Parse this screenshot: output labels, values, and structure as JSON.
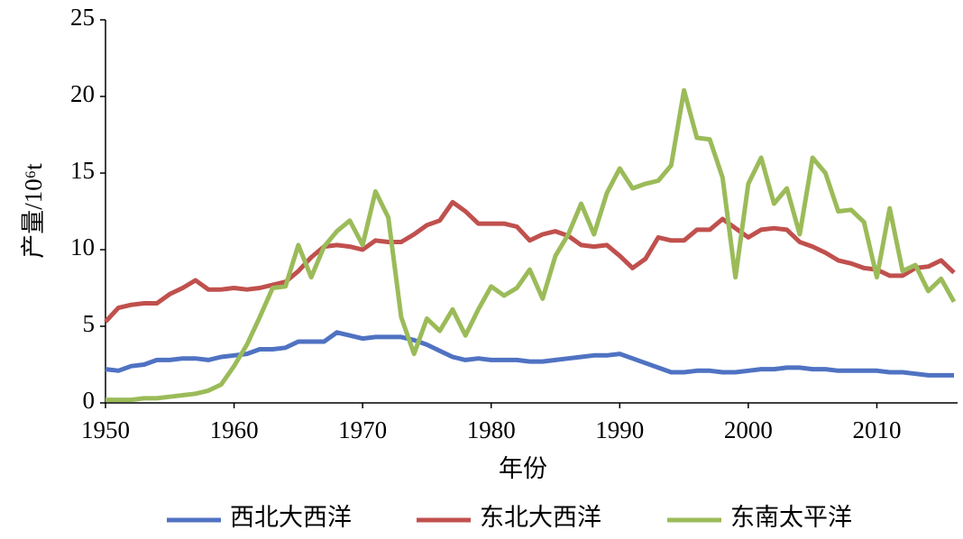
{
  "chart_data": {
    "type": "line",
    "xlabel": "年份",
    "ylabel": "产量/10⁶t",
    "x": [
      1950,
      1951,
      1952,
      1953,
      1954,
      1955,
      1956,
      1957,
      1958,
      1959,
      1960,
      1961,
      1962,
      1963,
      1964,
      1965,
      1966,
      1967,
      1968,
      1969,
      1970,
      1971,
      1972,
      1973,
      1974,
      1975,
      1976,
      1977,
      1978,
      1979,
      1980,
      1981,
      1982,
      1983,
      1984,
      1985,
      1986,
      1987,
      1988,
      1989,
      1990,
      1991,
      1992,
      1993,
      1994,
      1995,
      1996,
      1997,
      1998,
      1999,
      2000,
      2001,
      2002,
      2003,
      2004,
      2005,
      2006,
      2007,
      2008,
      2009,
      2010,
      2011,
      2012,
      2013,
      2014,
      2015,
      2016
    ],
    "series": [
      {
        "name": "西北大西洋",
        "color": "#4f72c2",
        "values": [
          2.2,
          2.1,
          2.4,
          2.5,
          2.8,
          2.8,
          2.9,
          2.9,
          2.8,
          3.0,
          3.1,
          3.2,
          3.5,
          3.5,
          3.6,
          4.0,
          4.0,
          4.0,
          4.6,
          4.4,
          4.2,
          4.3,
          4.3,
          4.3,
          4.1,
          3.8,
          3.4,
          3.0,
          2.8,
          2.9,
          2.8,
          2.8,
          2.8,
          2.7,
          2.7,
          2.8,
          2.9,
          3.0,
          3.1,
          3.1,
          3.2,
          2.9,
          2.6,
          2.3,
          2.0,
          2.0,
          2.1,
          2.1,
          2.0,
          2.0,
          2.1,
          2.2,
          2.2,
          2.3,
          2.3,
          2.2,
          2.2,
          2.1,
          2.1,
          2.1,
          2.1,
          2.0,
          2.0,
          1.9,
          1.8,
          1.8,
          1.8
        ]
      },
      {
        "name": "东北大西洋",
        "color": "#c0504d",
        "values": [
          5.3,
          6.2,
          6.4,
          6.5,
          6.5,
          7.1,
          7.5,
          8.0,
          7.4,
          7.4,
          7.5,
          7.4,
          7.5,
          7.7,
          7.9,
          8.6,
          9.5,
          10.2,
          10.3,
          10.2,
          10.0,
          10.6,
          10.5,
          10.5,
          11.0,
          11.6,
          11.9,
          13.1,
          12.5,
          11.7,
          11.7,
          11.7,
          11.5,
          10.6,
          11.0,
          11.2,
          10.9,
          10.3,
          10.2,
          10.3,
          9.6,
          8.8,
          9.4,
          10.8,
          10.6,
          10.6,
          11.3,
          11.3,
          12.0,
          11.4,
          10.8,
          11.3,
          11.4,
          11.3,
          10.5,
          10.2,
          9.8,
          9.3,
          9.1,
          8.8,
          8.7,
          8.3,
          8.3,
          8.8,
          8.9,
          9.3,
          8.5
        ]
      },
      {
        "name": "东南太平洋",
        "color": "#9bbb59",
        "values": [
          0.2,
          0.2,
          0.2,
          0.3,
          0.3,
          0.4,
          0.5,
          0.6,
          0.8,
          1.2,
          2.4,
          3.8,
          5.6,
          7.5,
          7.6,
          10.3,
          8.2,
          10.2,
          11.2,
          11.9,
          10.3,
          13.8,
          12.1,
          5.6,
          3.2,
          5.5,
          4.7,
          6.1,
          4.4,
          6.1,
          7.6,
          7.0,
          7.5,
          8.7,
          6.8,
          9.6,
          11.0,
          13.0,
          11.0,
          13.7,
          15.3,
          14.0,
          14.3,
          14.5,
          15.5,
          20.4,
          17.3,
          17.2,
          14.7,
          8.2,
          14.3,
          16.0,
          13.0,
          14.0,
          11.0,
          16.0,
          15.0,
          12.5,
          12.6,
          11.8,
          8.2,
          12.7,
          8.6,
          9.0,
          7.3,
          8.1,
          6.6
        ]
      }
    ],
    "xlim": [
      1950,
      2016
    ],
    "xticks": [
      1950,
      1960,
      1970,
      1980,
      1990,
      2000,
      2010
    ],
    "ylim": [
      0,
      25
    ],
    "yticks": [
      0,
      5,
      10,
      15,
      20,
      25
    ],
    "legend": "bottom"
  }
}
